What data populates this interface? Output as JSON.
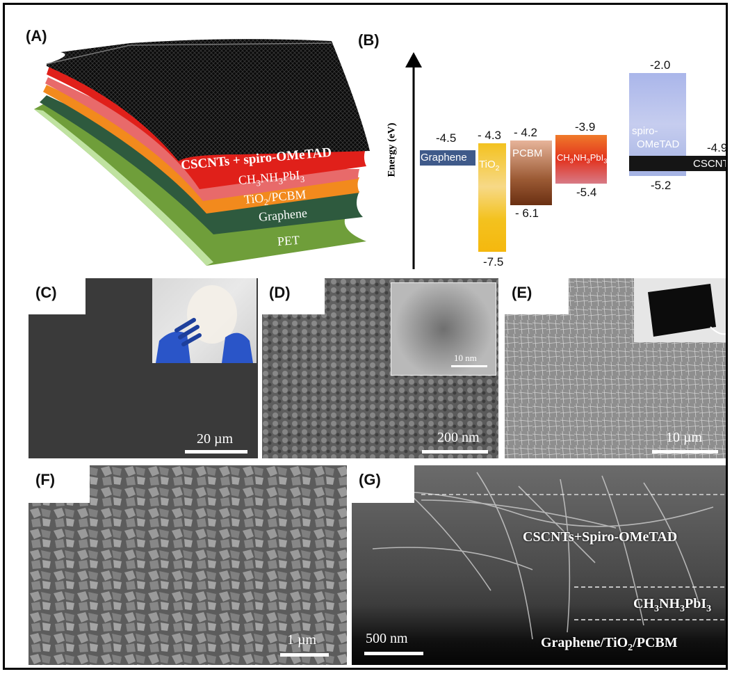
{
  "panels": {
    "A": {
      "label": "(A)",
      "layers": {
        "top": "CSCNTs + spiro-OMeTAD",
        "perovskite_main": "CH",
        "perovskite_sub1": "3",
        "perovskite_mid": "NH",
        "perovskite_sub2": "3",
        "perovskite_end": "PbI",
        "perovskite_sub3": "3",
        "tio2_main": "TiO",
        "tio2_sub": "2",
        "tio2_end": "/PCBM",
        "graphene": "Graphene",
        "pet": "PET"
      },
      "colors": {
        "top": "#0b0b0b",
        "red": "#e0201a",
        "orange": "#f28a1d",
        "graphene": "#2e5a3e",
        "pet": "#6f9e3a"
      }
    },
    "B": {
      "label": "(B)",
      "axis_label": "Energy (eV)",
      "materials": [
        {
          "name": "Graphene",
          "top": "-4.5",
          "bottom": "",
          "color": "#3f5a8a"
        },
        {
          "name_main": "TiO",
          "name_sub": "2",
          "top": "- 4.3",
          "bottom": "-7.5",
          "color": "#f3c21f"
        },
        {
          "name": "PCBM",
          "top": "- 4.2",
          "bottom": "- 6.1",
          "color": "#9b5a34"
        },
        {
          "name_parts": [
            "CH",
            "3",
            "NH",
            "3",
            "PbI",
            "3"
          ],
          "top": "-3.9",
          "bottom": "-5.4",
          "color": "#e2321e"
        },
        {
          "name_line1": "spiro-",
          "name_line2": "OMeTAD",
          "top": "-2.0",
          "bottom": "-5.2",
          "color": "#a9b7e6"
        },
        {
          "name": "CSCNTs",
          "top": "-4.9",
          "bottom": "",
          "color": "#151515"
        }
      ]
    },
    "C": {
      "label": "(C)",
      "scale": "20 µm"
    },
    "D": {
      "label": "(D)",
      "scale": "200 nm",
      "inset_scale": "10 nm"
    },
    "E": {
      "label": "(E)",
      "scale": "10 µm"
    },
    "F": {
      "label": "(F)",
      "scale": "1 µm"
    },
    "G": {
      "label": "(G)",
      "scale": "500 nm",
      "layer1": "CSCNTs+Spiro-OMeTAD",
      "layer2_main": "CH",
      "layer2_sub1": "3",
      "layer2_mid": "NH",
      "layer2_sub2": "3",
      "layer2_end": "PbI",
      "layer2_sub3": "3",
      "layer3_main": "Graphene/TiO",
      "layer3_sub": "2",
      "layer3_end": "/PCBM"
    }
  }
}
